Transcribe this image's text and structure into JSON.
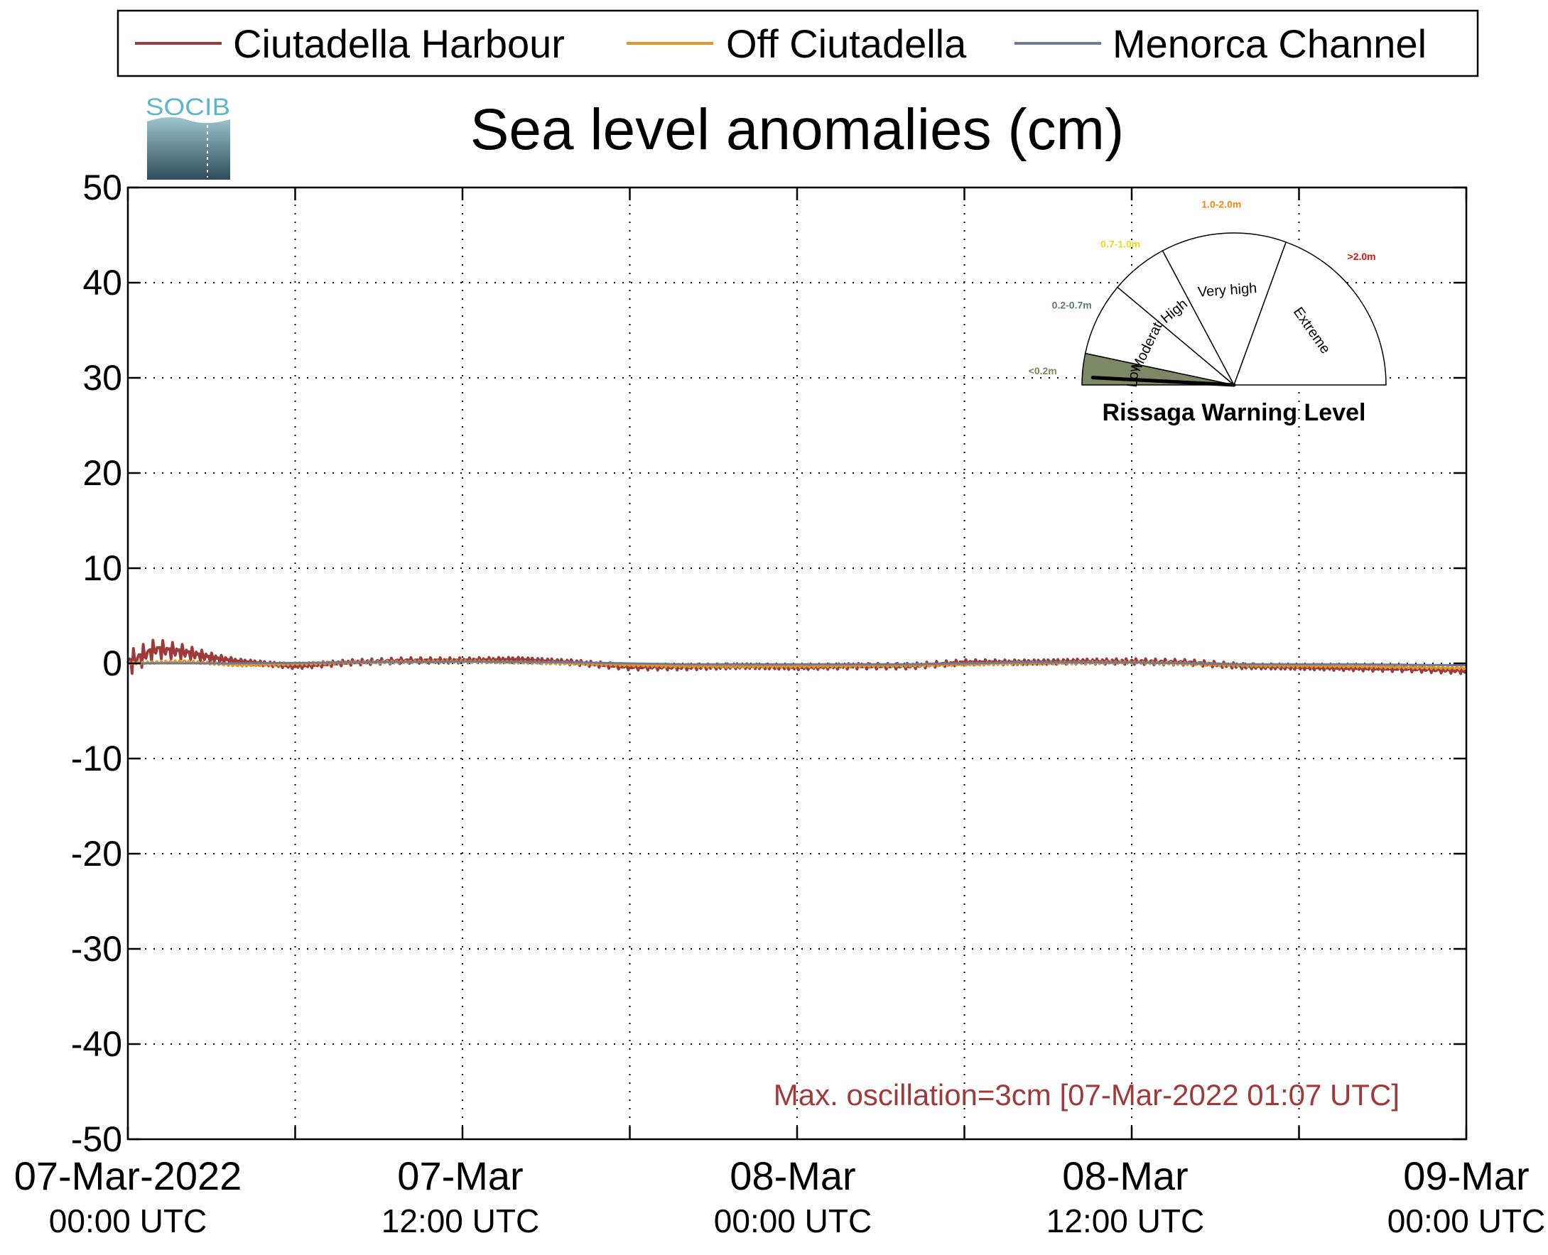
{
  "chart_data": {
    "type": "line",
    "title": "Sea level anomalies (cm)",
    "xlabel": "",
    "ylabel": "",
    "ylim": [
      -50,
      50
    ],
    "yticks": [
      50,
      40,
      30,
      20,
      10,
      0,
      -10,
      -20,
      -30,
      -40,
      -50
    ],
    "xlim": [
      "07-Mar-2022 00:00 UTC",
      "09-Mar-2022 00:00 UTC"
    ],
    "xticks": [
      {
        "line1": "07-Mar-2022",
        "line2": "00:00 UTC"
      },
      {
        "line1": "07-Mar",
        "line2": "12:00 UTC"
      },
      {
        "line1": "08-Mar",
        "line2": "00:00 UTC"
      },
      {
        "line1": "08-Mar",
        "line2": "12:00 UTC"
      },
      {
        "line1": "09-Mar",
        "line2": "00:00 UTC"
      }
    ],
    "grid": true,
    "legend_position": "top",
    "series": [
      {
        "name": "Ciutadella Harbour",
        "color": "#9e3a3a",
        "x_hours": [
          0,
          1,
          2,
          3,
          4,
          6,
          8,
          10,
          12,
          14,
          16,
          18,
          20,
          22,
          24,
          26,
          28,
          30,
          32,
          34,
          36,
          38,
          40,
          42,
          44,
          46,
          48
        ],
        "values": [
          0,
          1.5,
          1.2,
          0.6,
          0.2,
          -0.3,
          0.1,
          0.3,
          0.3,
          0.4,
          0.1,
          -0.4,
          -0.4,
          -0.3,
          -0.4,
          -0.3,
          -0.3,
          0.1,
          0.1,
          0.2,
          0.2,
          0.1,
          -0.3,
          -0.4,
          -0.5,
          -0.6,
          -0.8
        ]
      },
      {
        "name": "Off Ciutadella",
        "color": "#e0962a",
        "x_hours": [
          0,
          2,
          4,
          8,
          12,
          16,
          20,
          24,
          28,
          32,
          36,
          40,
          44,
          48
        ],
        "values": [
          0,
          0.2,
          -0.2,
          0.1,
          0.2,
          0,
          -0.3,
          -0.3,
          -0.2,
          0,
          0.1,
          -0.2,
          -0.3,
          -0.5
        ]
      },
      {
        "name": "Menorca Channel",
        "color": "#6f7a96",
        "x_hours": [
          0,
          4,
          8,
          12,
          16,
          20,
          24,
          28,
          32,
          36,
          40,
          44,
          48
        ],
        "values": [
          0,
          0,
          0.1,
          0.2,
          0.1,
          -0.1,
          -0.1,
          -0.1,
          0.1,
          0.1,
          -0.1,
          -0.1,
          -0.2
        ]
      }
    ],
    "annotation": "Max. oscillation=3cm [07-Mar-2022 01:07 UTC]"
  },
  "logo": {
    "text": "SOCIB"
  },
  "gauge": {
    "title": "Rissaga Warning Level",
    "current_level": "Low",
    "levels": [
      {
        "name": "Low",
        "range": "<0.2m",
        "range_color": "#7a8a5a",
        "fill": "#7d8866"
      },
      {
        "name": "Moderate",
        "range": "0.2-0.7m",
        "range_color": "#5a7a72",
        "fill": "#ffffff"
      },
      {
        "name": "High",
        "range": "0.7-1.0m",
        "range_color": "#e8d820",
        "fill": "#ffffff"
      },
      {
        "name": "Very high",
        "range": "1.0-2.0m",
        "range_color": "#f08a10",
        "fill": "#ffffff"
      },
      {
        "name": "Extreme",
        "range": ">2.0m",
        "range_color": "#e01010",
        "fill": "#ffffff"
      }
    ]
  }
}
